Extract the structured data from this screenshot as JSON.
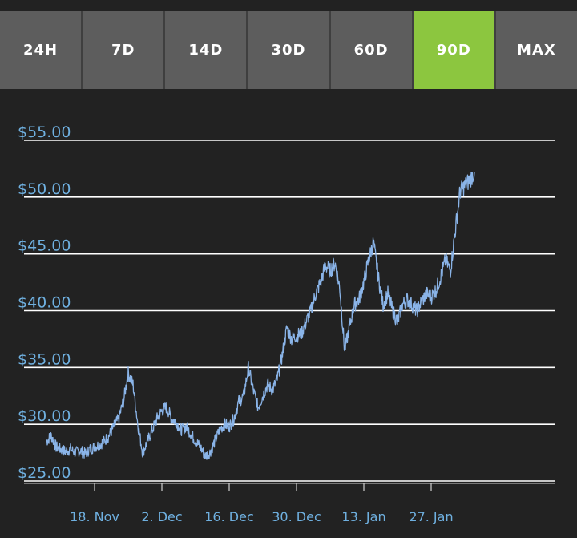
{
  "tabs": [
    {
      "label": "24H",
      "active": false
    },
    {
      "label": "7D",
      "active": false
    },
    {
      "label": "14D",
      "active": false
    },
    {
      "label": "30D",
      "active": false
    },
    {
      "label": "60D",
      "active": false
    },
    {
      "label": "90D",
      "active": true
    },
    {
      "label": "MAX",
      "active": false
    }
  ],
  "colors": {
    "background": "#222222",
    "tab": "#5d5d5d",
    "tab_active": "#8cc63f",
    "line": "#8ab4e8",
    "grid": "#ffffff",
    "labels": "#6fb0e0"
  },
  "chart_data": {
    "type": "line",
    "title": "",
    "xlabel": "",
    "ylabel": "",
    "ylim": [
      25,
      55
    ],
    "y_ticks": [
      55,
      50,
      45,
      40,
      35,
      30,
      25
    ],
    "y_tick_labels": [
      "$55.00",
      "$50.00",
      "$45.00",
      "$40.00",
      "$35.00",
      "$30.00",
      "$25.00"
    ],
    "x_ticks": [
      {
        "day": 10,
        "label": "18. Nov"
      },
      {
        "day": 24,
        "label": "2. Dec"
      },
      {
        "day": 38,
        "label": "16. Dec"
      },
      {
        "day": 52,
        "label": "30. Dec"
      },
      {
        "day": 66,
        "label": "13. Jan"
      },
      {
        "day": 80,
        "label": "27. Jan"
      }
    ],
    "grid": true,
    "legend": "none",
    "series": [
      {
        "x": [
          0,
          1,
          2,
          3,
          4,
          5,
          6,
          7,
          8,
          9,
          10,
          11,
          12,
          13,
          14,
          15,
          16,
          17,
          18,
          19,
          20,
          21,
          22,
          23,
          24,
          25,
          26,
          27,
          28,
          29,
          30,
          31,
          32,
          33,
          34,
          35,
          36,
          37,
          38,
          39,
          40,
          41,
          42,
          43,
          44,
          45,
          46,
          47,
          48,
          49,
          50,
          51,
          52,
          53,
          54,
          55,
          56,
          57,
          58,
          59,
          60,
          61,
          62,
          63,
          64,
          65,
          66,
          67,
          68,
          69,
          70,
          71,
          72,
          73,
          74,
          75,
          76,
          77,
          78,
          79,
          80,
          81,
          82,
          83,
          84,
          85,
          86,
          87,
          88,
          89
        ],
        "y": [
          28.5,
          29,
          28,
          27.8,
          27.6,
          27.8,
          27.5,
          27.7,
          27.4,
          27.8,
          28,
          28.2,
          28.5,
          29,
          29.8,
          30.5,
          32,
          34.5,
          33.5,
          30,
          27.5,
          28.5,
          29.5,
          30.5,
          31.2,
          31.5,
          30.5,
          30.2,
          29.5,
          29.8,
          29.2,
          28.5,
          28,
          27.2,
          27.5,
          28.5,
          29.5,
          30,
          29.8,
          30.5,
          32,
          32.5,
          35,
          33,
          31.5,
          32.5,
          33.5,
          33,
          34,
          36,
          38.5,
          37.5,
          37.8,
          38,
          39,
          40,
          41.5,
          42.5,
          44,
          43.5,
          44.2,
          42,
          36.5,
          38.5,
          40.5,
          41,
          42.5,
          44.5,
          46,
          43,
          40.5,
          41.5,
          40,
          39,
          40.5,
          41,
          40.5,
          40,
          40.8,
          41.5,
          41.2,
          41.8,
          43,
          44.5,
          43.5,
          47,
          50.5,
          51,
          51.5,
          52.2
        ]
      }
    ]
  }
}
